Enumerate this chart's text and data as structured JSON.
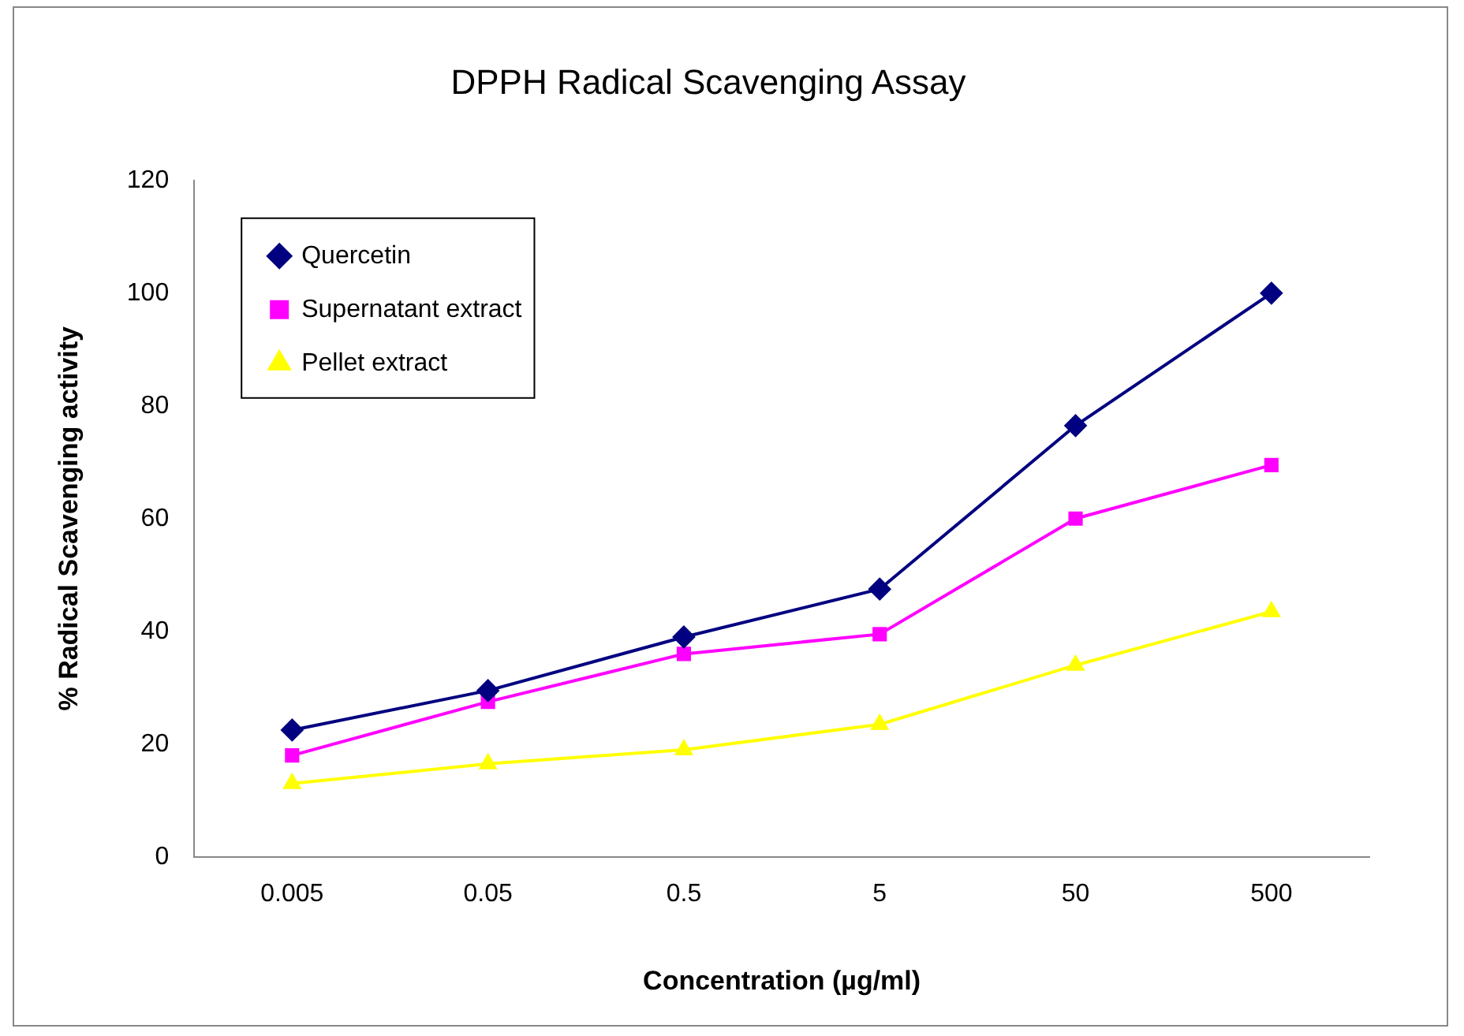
{
  "chart_data": {
    "type": "line",
    "title": "DPPH Radical Scavenging Assay",
    "xlabel": "Concentration (µg/ml)",
    "ylabel": "% Radical Scavenging activity",
    "categories": [
      "0.005",
      "0.05",
      "0.5",
      "5",
      "50",
      "500"
    ],
    "ylim": [
      0,
      120
    ],
    "yticks": [
      0,
      20,
      40,
      60,
      80,
      100,
      120
    ],
    "grid": false,
    "legend": "top left",
    "line_style": "solid",
    "series": [
      {
        "name": "Quercetin",
        "color": "#000080",
        "marker": "diamond",
        "values": [
          22.5,
          29.5,
          39,
          47.5,
          76.5,
          100
        ]
      },
      {
        "name": "Supernatant extract",
        "color": "#ff00ff",
        "marker": "square",
        "values": [
          18,
          27.5,
          36,
          39.5,
          60,
          69.5
        ]
      },
      {
        "name": "Pellet extract",
        "color": "#ffff00",
        "marker": "triangle",
        "values": [
          13,
          16.5,
          19,
          23.5,
          34,
          43.5
        ]
      }
    ]
  }
}
